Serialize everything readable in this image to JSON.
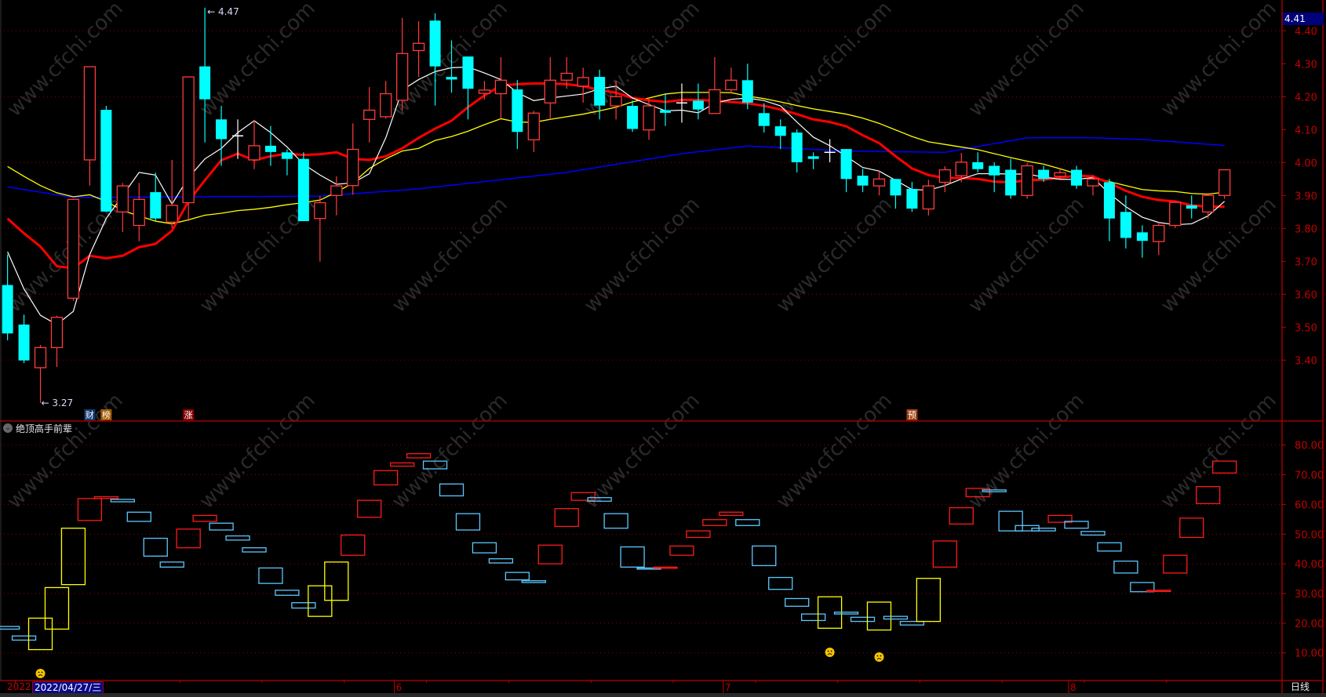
{
  "indicator": {
    "title": "绝顶高手前辈"
  },
  "crosshair": {
    "price": "4.41",
    "date": "2022/04/27/三"
  },
  "time_axis": {
    "year": "2022",
    "months": [
      {
        "label": "6",
        "index": 25
      },
      {
        "label": "7",
        "index": 45
      },
      {
        "label": "8",
        "index": 66
      }
    ],
    "period": "日线"
  },
  "watermark": "www.cfchi.com",
  "annotations": {
    "high": "4.47",
    "low": "3.27",
    "high_index": 13,
    "low_index": 3
  },
  "markers": [
    {
      "label": "财",
      "index": 6,
      "color": "#123a70"
    },
    {
      "label": "榜",
      "index": 7,
      "color": "#a05a00"
    },
    {
      "label": "涨",
      "index": 12,
      "color": "#8a0000"
    },
    {
      "label": "预",
      "index": 56,
      "color": "#a04010"
    }
  ],
  "sad_faces": [
    3,
    51,
    54
  ],
  "colors": {
    "up": "#ff3b3b",
    "down": "#00ffff",
    "doji": "#ffffff",
    "ma5": "#ffffff",
    "ma10": "#ff0000",
    "ma20": "#ffff00",
    "ma60": "#0000ff",
    "grid": "#8a0000",
    "axis": "#c00000",
    "ind_blue": "#5ac8ff",
    "ind_red": "#ff1a1a",
    "ind_yellow": "#ffff00"
  },
  "chart_data": [
    {
      "type": "candlestick",
      "price_axis": {
        "ticks": [
          "4.40",
          "4.30",
          "4.20",
          "4.10",
          "4.00",
          "3.90",
          "3.80",
          "3.70",
          "3.60",
          "3.50",
          "3.40"
        ],
        "gridlines": [
          4.4,
          4.2,
          4.0,
          3.8,
          3.6,
          3.4
        ]
      },
      "ohlc": [
        [
          3.628,
          3.721,
          3.46,
          3.481
        ],
        [
          3.508,
          3.538,
          3.391,
          3.399
        ],
        [
          3.377,
          3.446,
          3.27,
          3.438
        ],
        [
          3.438,
          3.535,
          3.379,
          3.53
        ],
        [
          3.588,
          3.89,
          3.58,
          3.888
        ],
        [
          4.008,
          4.291,
          3.93,
          4.291
        ],
        [
          4.16,
          4.172,
          3.851,
          3.851
        ],
        [
          3.85,
          3.938,
          3.789,
          3.929
        ],
        [
          3.809,
          3.938,
          3.761,
          3.888
        ],
        [
          3.91,
          3.969,
          3.822,
          3.83
        ],
        [
          3.819,
          4.008,
          3.801,
          3.87
        ],
        [
          3.878,
          4.26,
          3.822,
          4.26
        ],
        [
          4.292,
          4.47,
          4.061,
          4.192
        ],
        [
          4.131,
          4.172,
          3.99,
          4.071
        ],
        [
          4.081,
          4.131,
          4.011,
          4.081
        ],
        [
          4.008,
          4.127,
          3.98,
          4.051
        ],
        [
          4.051,
          4.111,
          3.99,
          4.032
        ],
        [
          4.031,
          4.04,
          3.961,
          4.011
        ],
        [
          4.011,
          4.031,
          3.822,
          3.822
        ],
        [
          3.83,
          3.898,
          3.699,
          3.878
        ],
        [
          3.9,
          3.958,
          3.84,
          3.929
        ],
        [
          3.93,
          4.119,
          3.902,
          4.04
        ],
        [
          4.131,
          4.229,
          4.061,
          4.159
        ],
        [
          4.139,
          4.248,
          4.133,
          4.209
        ],
        [
          4.189,
          4.439,
          4.159,
          4.331
        ],
        [
          4.34,
          4.429,
          4.26,
          4.362
        ],
        [
          4.431,
          4.453,
          4.173,
          4.292
        ],
        [
          4.26,
          4.371,
          4.212,
          4.252
        ],
        [
          4.322,
          4.322,
          4.131,
          4.224
        ],
        [
          4.21,
          4.248,
          4.192,
          4.22
        ],
        [
          4.209,
          4.32,
          4.134,
          4.25
        ],
        [
          4.222,
          4.25,
          4.041,
          4.093
        ],
        [
          4.069,
          4.157,
          4.032,
          4.15
        ],
        [
          4.181,
          4.32,
          4.131,
          4.25
        ],
        [
          4.25,
          4.32,
          4.224,
          4.271
        ],
        [
          4.232,
          4.288,
          4.182,
          4.258
        ],
        [
          4.26,
          4.282,
          4.131,
          4.173
        ],
        [
          4.172,
          4.248,
          4.131,
          4.2
        ],
        [
          4.172,
          4.188,
          4.093,
          4.102
        ],
        [
          4.099,
          4.196,
          4.069,
          4.172
        ],
        [
          4.159,
          4.21,
          4.111,
          4.151
        ],
        [
          4.181,
          4.24,
          4.121,
          4.181
        ],
        [
          4.188,
          4.24,
          4.131,
          4.161
        ],
        [
          4.149,
          4.32,
          4.149,
          4.221
        ],
        [
          4.221,
          4.288,
          4.212,
          4.25
        ],
        [
          4.25,
          4.3,
          4.162,
          4.182
        ],
        [
          4.15,
          4.18,
          4.091,
          4.111
        ],
        [
          4.11,
          4.131,
          4.041,
          4.081
        ],
        [
          4.091,
          4.101,
          3.97,
          4.001
        ],
        [
          4.019,
          4.031,
          3.98,
          4.011
        ],
        [
          4.031,
          4.071,
          4.001,
          4.031
        ],
        [
          4.041,
          4.041,
          3.91,
          3.95
        ],
        [
          3.96,
          3.981,
          3.91,
          3.93
        ],
        [
          3.929,
          3.974,
          3.9,
          3.95
        ],
        [
          3.95,
          3.95,
          3.86,
          3.9
        ],
        [
          3.92,
          3.941,
          3.85,
          3.86
        ],
        [
          3.859,
          3.948,
          3.839,
          3.929
        ],
        [
          3.94,
          3.989,
          3.91,
          3.978
        ],
        [
          3.96,
          4.029,
          3.94,
          4.001
        ],
        [
          4.001,
          4.031,
          3.97,
          3.98
        ],
        [
          3.99,
          4.001,
          3.91,
          3.961
        ],
        [
          3.978,
          4.011,
          3.89,
          3.9
        ],
        [
          3.9,
          3.999,
          3.89,
          3.99
        ],
        [
          3.978,
          3.99,
          3.941,
          3.95
        ],
        [
          3.958,
          3.981,
          3.95,
          3.969
        ],
        [
          3.978,
          3.99,
          3.92,
          3.93
        ],
        [
          3.929,
          3.962,
          3.9,
          3.95
        ],
        [
          3.94,
          3.95,
          3.761,
          3.83
        ],
        [
          3.85,
          3.9,
          3.739,
          3.771
        ],
        [
          3.788,
          3.809,
          3.711,
          3.762
        ],
        [
          3.76,
          3.818,
          3.719,
          3.809
        ],
        [
          3.809,
          3.882,
          3.801,
          3.879
        ],
        [
          3.87,
          3.9,
          3.83,
          3.86
        ],
        [
          3.85,
          3.908,
          3.83,
          3.9
        ],
        [
          3.9,
          3.978,
          3.89,
          3.978
        ]
      ],
      "ma_white": [
        3.729,
        3.616,
        3.536,
        3.508,
        3.548,
        3.721,
        3.83,
        3.9,
        3.97,
        3.962,
        3.874,
        3.954,
        4.011,
        4.043,
        4.091,
        4.127,
        4.091,
        4.047,
        3.995,
        3.962,
        3.934,
        3.938,
        3.966,
        4.075,
        4.22,
        4.252,
        4.276,
        4.288,
        4.29,
        4.272,
        4.252,
        4.212,
        4.188,
        4.196,
        4.202,
        4.208,
        4.224,
        4.232,
        4.196,
        4.176,
        4.157,
        4.159,
        4.151,
        4.18,
        4.192,
        4.196,
        4.188,
        4.172,
        4.123,
        4.077,
        4.051,
        4.019,
        3.985,
        3.974,
        3.946,
        3.918,
        3.916,
        3.93,
        3.95,
        3.966,
        3.966,
        3.965,
        3.965,
        3.956,
        3.949,
        3.949,
        3.954,
        3.906,
        3.866,
        3.834,
        3.818,
        3.811,
        3.814,
        3.838,
        3.882
      ],
      "ma_red": [
        3.83,
        3.785,
        3.745,
        3.685,
        3.679,
        3.717,
        3.709,
        3.717,
        3.743,
        3.753,
        3.793,
        3.882,
        3.946,
        4.007,
        4.027,
        4.007,
        4.019,
        4.027,
        4.023,
        4.025,
        4.031,
        4.011,
        4.008,
        4.019,
        4.043,
        4.075,
        4.103,
        4.127,
        4.168,
        4.204,
        4.234,
        4.238,
        4.24,
        4.24,
        4.238,
        4.232,
        4.22,
        4.212,
        4.196,
        4.189,
        4.184,
        4.19,
        4.19,
        4.188,
        4.184,
        4.18,
        4.172,
        4.161,
        4.147,
        4.131,
        4.123,
        4.11,
        4.083,
        4.059,
        4.019,
        3.982,
        3.962,
        3.953,
        3.953,
        3.95,
        3.942,
        3.94,
        3.946,
        3.948,
        3.954,
        3.96,
        3.958,
        3.938,
        3.914,
        3.896,
        3.886,
        3.882,
        3.87,
        3.866,
        3.866
      ],
      "ma_yellow": [
        3.988,
        3.958,
        3.93,
        3.908,
        3.896,
        3.902,
        3.882,
        3.854,
        3.838,
        3.822,
        3.814,
        3.826,
        3.84,
        3.846,
        3.854,
        3.858,
        3.864,
        3.872,
        3.878,
        3.886,
        3.91,
        3.938,
        3.982,
        4.011,
        4.035,
        4.043,
        4.067,
        4.079,
        4.095,
        4.115,
        4.133,
        4.123,
        4.122,
        4.131,
        4.139,
        4.147,
        4.157,
        4.168,
        4.184,
        4.196,
        4.208,
        4.213,
        4.213,
        4.213,
        4.212,
        4.202,
        4.194,
        4.184,
        4.173,
        4.163,
        4.155,
        4.147,
        4.135,
        4.119,
        4.099,
        4.079,
        4.063,
        4.055,
        4.047,
        4.039,
        4.027,
        4.015,
        4.004,
        3.995,
        3.981,
        3.966,
        3.954,
        3.942,
        3.93,
        3.918,
        3.914,
        3.912,
        3.906,
        3.904,
        3.91
      ],
      "ma_blue_points": [
        [
          1,
          3.926
        ],
        [
          5,
          3.894
        ],
        [
          20,
          3.898
        ],
        [
          26,
          3.92
        ],
        [
          35,
          3.97
        ],
        [
          42,
          4.027
        ],
        [
          46,
          4.05
        ],
        [
          52,
          4.035
        ],
        [
          58,
          4.031
        ],
        [
          63,
          4.075
        ],
        [
          67,
          4.075
        ],
        [
          70,
          4.07
        ],
        [
          75,
          4.052
        ]
      ]
    },
    {
      "type": "box-indicator",
      "axis_ticks": [
        "80.00",
        "70.00",
        "60.00",
        "50.00",
        "40.00",
        "30.00",
        "20.00",
        "10.00"
      ],
      "boxes": [
        [
          18,
          18.9,
          "blue"
        ],
        [
          14.3,
          15.7,
          "blue"
        ],
        [
          11.1,
          21.7,
          "yellow"
        ],
        [
          18,
          32,
          "yellow"
        ],
        [
          33,
          52,
          "yellow"
        ],
        [
          54.6,
          62,
          "red"
        ],
        [
          62,
          62.6,
          "red"
        ],
        [
          60.9,
          61.7,
          "blue"
        ],
        [
          54.3,
          57.4,
          "blue"
        ],
        [
          42.6,
          48.6,
          "blue"
        ],
        [
          38.9,
          40.6,
          "blue"
        ],
        [
          45.4,
          51.7,
          "red"
        ],
        [
          54.3,
          56.3,
          "red"
        ],
        [
          51.4,
          53.7,
          "blue"
        ],
        [
          48,
          49.4,
          "blue"
        ],
        [
          44,
          45.4,
          "blue"
        ],
        [
          33.4,
          38.6,
          "blue"
        ],
        [
          29.4,
          31.1,
          "blue"
        ],
        [
          25.1,
          26.9,
          "blue"
        ],
        [
          22.3,
          32.6,
          "yellow"
        ],
        [
          27.7,
          40.6,
          "yellow"
        ],
        [
          42.9,
          49.7,
          "red"
        ],
        [
          55.7,
          61.4,
          "red"
        ],
        [
          66.6,
          71.4,
          "red"
        ],
        [
          72.9,
          74,
          "red"
        ],
        [
          75.7,
          77.1,
          "red"
        ],
        [
          72,
          74.6,
          "blue"
        ],
        [
          62.9,
          66.9,
          "blue"
        ],
        [
          51.4,
          56.9,
          "blue"
        ],
        [
          43.7,
          47.1,
          "blue"
        ],
        [
          40.3,
          41.7,
          "blue"
        ],
        [
          34.6,
          37.1,
          "blue"
        ],
        [
          33.7,
          34.3,
          "blue"
        ],
        [
          40,
          46.3,
          "red"
        ],
        [
          52.6,
          58.6,
          "red"
        ],
        [
          61.4,
          64,
          "red"
        ],
        [
          61.1,
          62.3,
          "blue"
        ],
        [
          52,
          56.9,
          "blue"
        ],
        [
          38.9,
          45.7,
          "blue"
        ],
        [
          38.3,
          38.6,
          "blue"
        ],
        [
          38.6,
          38.9,
          "red"
        ],
        [
          42.9,
          46,
          "red"
        ],
        [
          48.9,
          51.1,
          "red"
        ],
        [
          52.9,
          54.9,
          "red"
        ],
        [
          56.3,
          57.4,
          "red"
        ],
        [
          52.9,
          54.9,
          "blue"
        ],
        [
          39.4,
          46,
          "blue"
        ],
        [
          31.4,
          35.4,
          "blue"
        ],
        [
          25.7,
          28.3,
          "blue"
        ],
        [
          20.9,
          23.1,
          "blue"
        ],
        [
          18.3,
          28.9,
          "yellow"
        ],
        [
          23.1,
          23.7,
          "blue"
        ],
        [
          20.6,
          22,
          "blue"
        ],
        [
          17.7,
          27.1,
          "yellow"
        ],
        [
          21.4,
          22.3,
          "blue"
        ],
        [
          19.4,
          20.6,
          "blue"
        ],
        [
          20.6,
          35.1,
          "yellow"
        ],
        [
          38.9,
          47.7,
          "red"
        ],
        [
          53.4,
          58.9,
          "red"
        ],
        [
          62.6,
          65.4,
          "red"
        ],
        [
          64.3,
          64.9,
          "blue"
        ],
        [
          51.1,
          57.7,
          "blue"
        ],
        [
          51.1,
          52.9,
          "blue"
        ],
        [
          51.1,
          52,
          "blue"
        ],
        [
          54,
          56.3,
          "red"
        ],
        [
          52,
          54.3,
          "blue"
        ],
        [
          49.7,
          50.9,
          "blue"
        ],
        [
          44.3,
          47.1,
          "blue"
        ],
        [
          36.9,
          40.9,
          "blue"
        ],
        [
          30.6,
          33.7,
          "blue"
        ],
        [
          30.9,
          31.1,
          "red"
        ],
        [
          36.9,
          42.9,
          "red"
        ],
        [
          48.9,
          55.4,
          "red"
        ],
        [
          60.3,
          66,
          "red"
        ],
        [
          70.6,
          74.6,
          "red"
        ]
      ]
    }
  ]
}
